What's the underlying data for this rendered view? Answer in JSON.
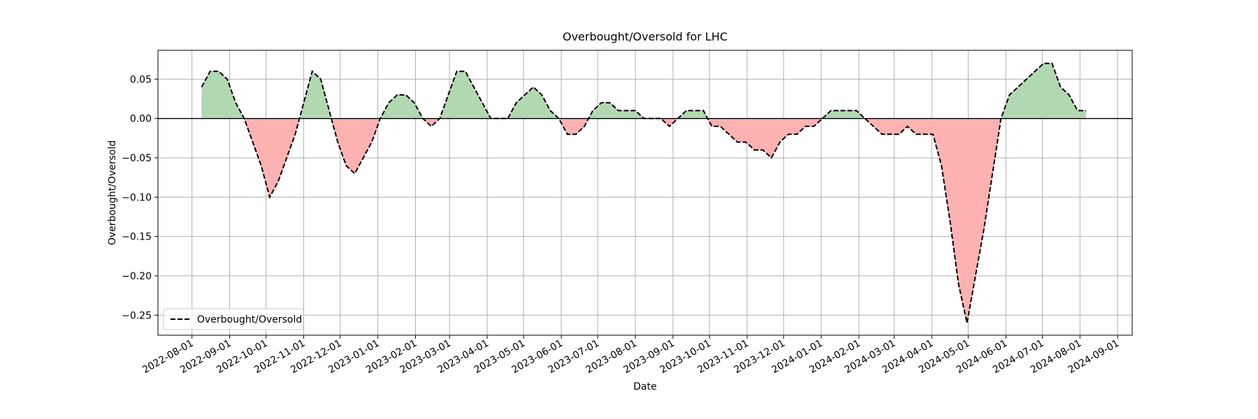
{
  "chart_data": {
    "type": "line",
    "title": "Overbought/Oversold for LHC",
    "xlabel": "Date",
    "ylabel": "Overbought/Oversold",
    "x": [
      "2022-08-09",
      "2022-08-16",
      "2022-08-23",
      "2022-08-30",
      "2022-09-06",
      "2022-09-13",
      "2022-09-20",
      "2022-09-27",
      "2022-10-04",
      "2022-10-11",
      "2022-10-18",
      "2022-10-25",
      "2022-11-01",
      "2022-11-08",
      "2022-11-15",
      "2022-11-22",
      "2022-11-29",
      "2022-12-06",
      "2022-12-13",
      "2022-12-20",
      "2022-12-27",
      "2023-01-03",
      "2023-01-10",
      "2023-01-17",
      "2023-01-24",
      "2023-01-31",
      "2023-02-07",
      "2023-02-14",
      "2023-02-21",
      "2023-02-28",
      "2023-03-07",
      "2023-03-14",
      "2023-03-21",
      "2023-03-28",
      "2023-04-04",
      "2023-04-11",
      "2023-04-18",
      "2023-04-25",
      "2023-05-02",
      "2023-05-09",
      "2023-05-16",
      "2023-05-23",
      "2023-05-30",
      "2023-06-06",
      "2023-06-13",
      "2023-06-20",
      "2023-06-27",
      "2023-07-04",
      "2023-07-11",
      "2023-07-18",
      "2023-07-25",
      "2023-08-01",
      "2023-08-08",
      "2023-08-15",
      "2023-08-22",
      "2023-08-29",
      "2023-09-05",
      "2023-09-12",
      "2023-09-19",
      "2023-09-26",
      "2023-10-03",
      "2023-10-10",
      "2023-10-17",
      "2023-10-24",
      "2023-10-31",
      "2023-11-07",
      "2023-11-14",
      "2023-11-21",
      "2023-11-28",
      "2023-12-05",
      "2023-12-12",
      "2023-12-19",
      "2023-12-26",
      "2024-01-02",
      "2024-01-09",
      "2024-01-16",
      "2024-01-23",
      "2024-01-30",
      "2024-02-06",
      "2024-02-13",
      "2024-02-20",
      "2024-02-27",
      "2024-03-05",
      "2024-03-12",
      "2024-03-19",
      "2024-03-26",
      "2024-04-02",
      "2024-04-09",
      "2024-04-16",
      "2024-04-23",
      "2024-04-30",
      "2024-05-07",
      "2024-05-14",
      "2024-05-21",
      "2024-05-28",
      "2024-06-04",
      "2024-06-11",
      "2024-06-18",
      "2024-06-25",
      "2024-07-02",
      "2024-07-09",
      "2024-07-16",
      "2024-07-23",
      "2024-07-30",
      "2024-08-06"
    ],
    "series": [
      {
        "name": "Overbought/Oversold",
        "color": "#000000",
        "linestyle": "dashed",
        "values": [
          0.04,
          0.06,
          0.06,
          0.05,
          0.02,
          0.0,
          -0.03,
          -0.06,
          -0.1,
          -0.08,
          -0.05,
          -0.02,
          0.02,
          0.06,
          0.05,
          0.01,
          -0.03,
          -0.06,
          -0.07,
          -0.05,
          -0.03,
          0.0,
          0.02,
          0.03,
          0.03,
          0.02,
          0.0,
          -0.01,
          0.0,
          0.03,
          0.06,
          0.06,
          0.04,
          0.02,
          0.0,
          0.0,
          0.0,
          0.02,
          0.03,
          0.04,
          0.03,
          0.01,
          0.0,
          -0.02,
          -0.02,
          -0.01,
          0.01,
          0.02,
          0.02,
          0.01,
          0.01,
          0.01,
          0.0,
          0.0,
          0.0,
          -0.01,
          0.0,
          0.01,
          0.01,
          0.01,
          -0.01,
          -0.01,
          -0.02,
          -0.03,
          -0.03,
          -0.04,
          -0.04,
          -0.05,
          -0.03,
          -0.02,
          -0.02,
          -0.01,
          -0.01,
          0.0,
          0.01,
          0.01,
          0.01,
          0.01,
          0.0,
          -0.01,
          -0.02,
          -0.02,
          -0.02,
          -0.01,
          -0.02,
          -0.02,
          -0.02,
          -0.06,
          -0.13,
          -0.21,
          -0.26,
          -0.2,
          -0.14,
          -0.07,
          0.0,
          0.03,
          0.04,
          0.05,
          0.06,
          0.07,
          0.07,
          0.04,
          0.03,
          0.01,
          0.01
        ]
      }
    ],
    "positive_fill": "#b2d8b2",
    "negative_fill": "#ffb2b2",
    "reference_line": 0,
    "xlim": [
      "2022-07-04",
      "2024-09-13"
    ],
    "ylim": [
      -0.2755,
      0.0867
    ],
    "xticks": [
      "2022-08-01",
      "2022-09-01",
      "2022-10-01",
      "2022-11-01",
      "2022-12-01",
      "2023-01-01",
      "2023-02-01",
      "2023-03-01",
      "2023-04-01",
      "2023-05-01",
      "2023-06-01",
      "2023-07-01",
      "2023-08-01",
      "2023-09-01",
      "2023-10-01",
      "2023-11-01",
      "2023-12-01",
      "2024-01-01",
      "2024-02-01",
      "2024-03-01",
      "2024-04-01",
      "2024-05-01",
      "2024-06-01",
      "2024-07-01",
      "2024-08-01",
      "2024-09-01"
    ],
    "yticks": [
      {
        "value": 0.05,
        "label": "0.05"
      },
      {
        "value": 0.0,
        "label": "0.00"
      },
      {
        "value": -0.05,
        "label": "−0.05"
      },
      {
        "value": -0.1,
        "label": "−0.10"
      },
      {
        "value": -0.15,
        "label": "−0.15"
      },
      {
        "value": -0.2,
        "label": "−0.20"
      },
      {
        "value": -0.25,
        "label": "−0.25"
      }
    ],
    "grid": true,
    "legend": "lower left"
  }
}
